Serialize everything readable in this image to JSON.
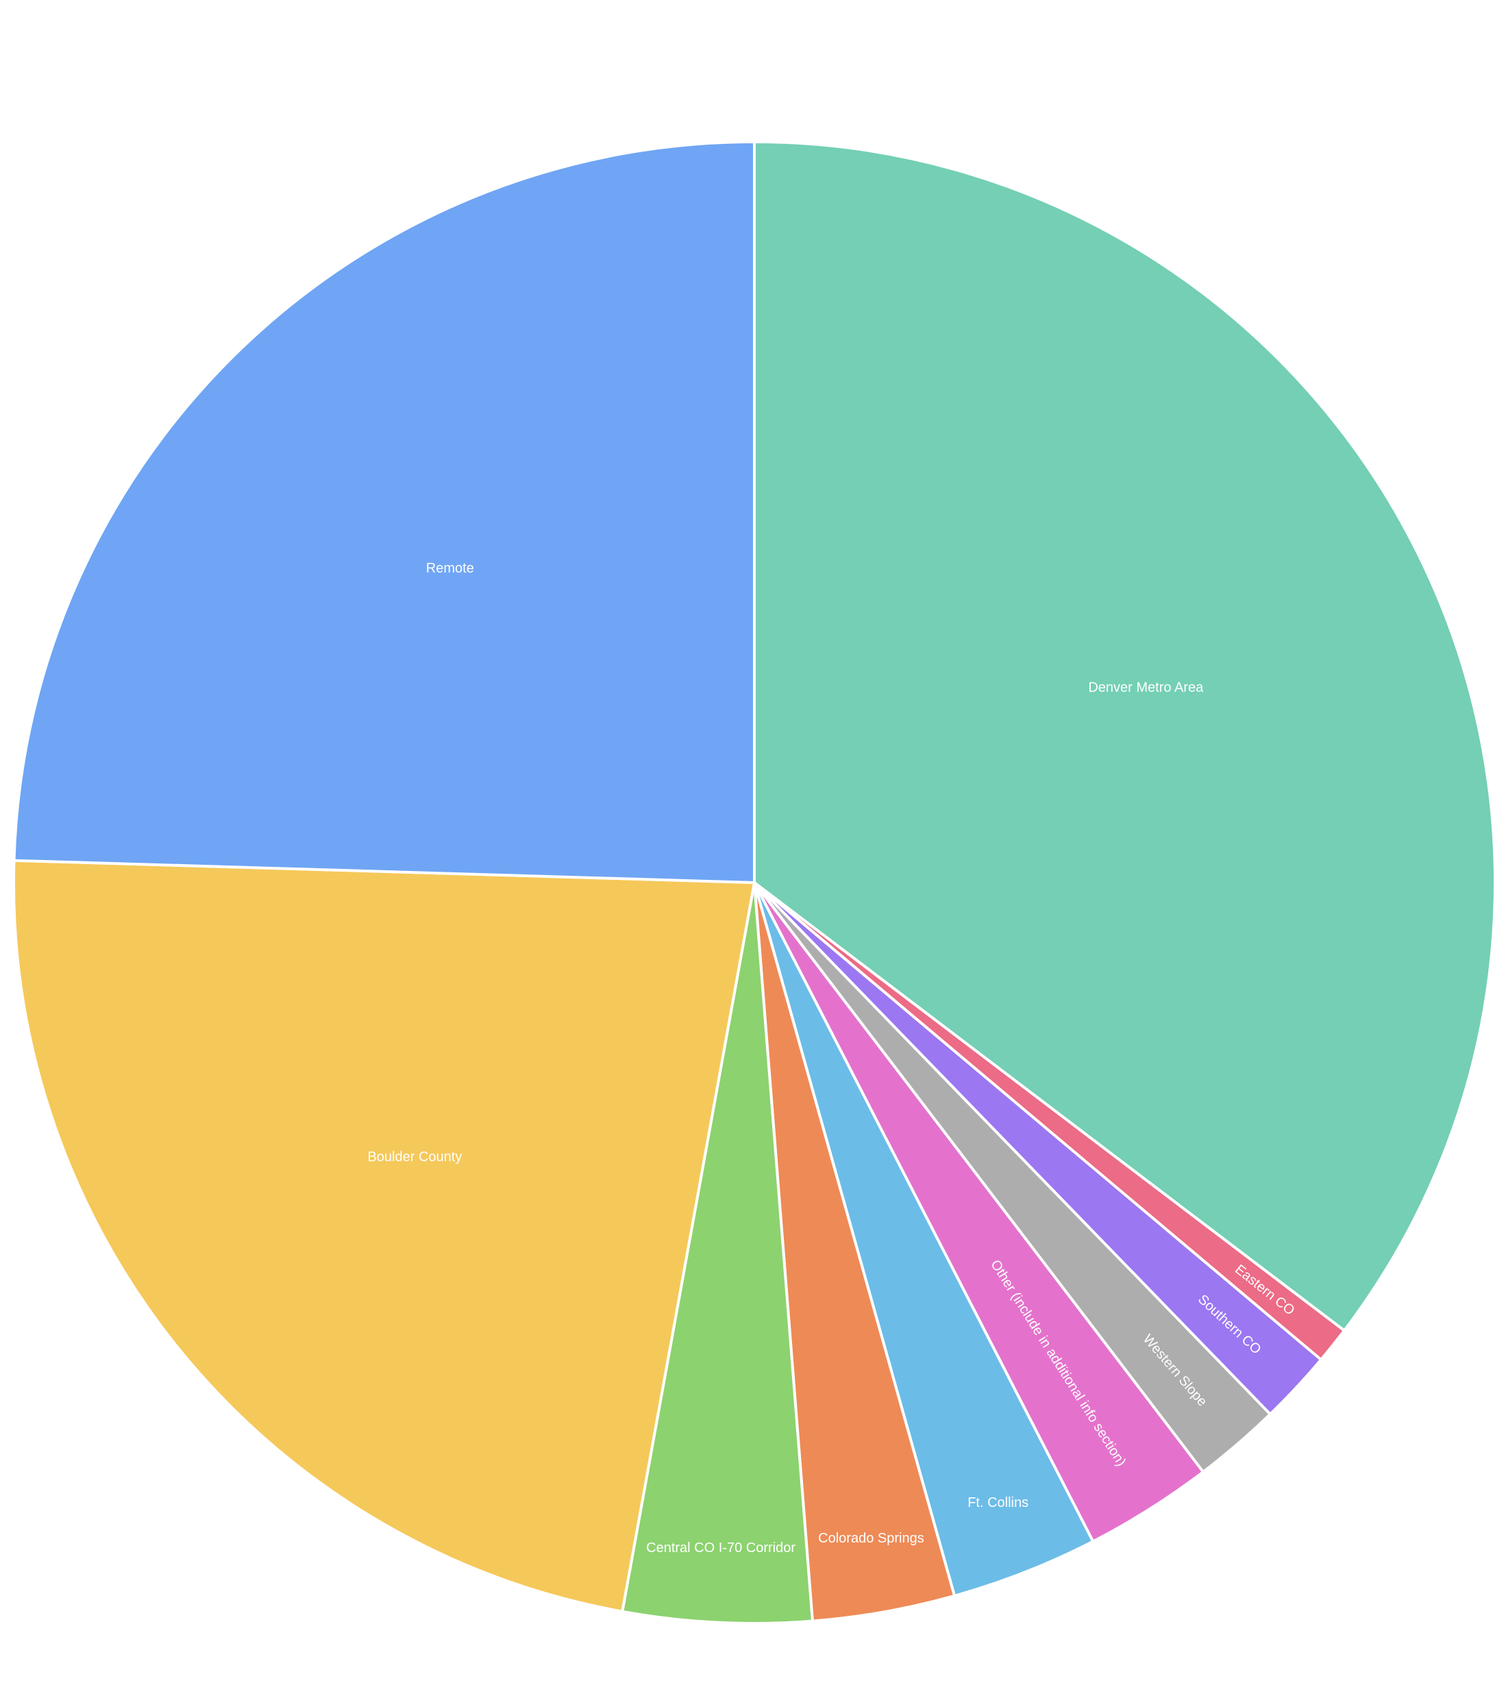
{
  "chart_data": {
    "type": "pie",
    "categories": [
      "Denver Metro Area",
      "Eastern CO",
      "Southern CO",
      "Western Slope",
      "Other (include in additional info section)",
      "Ft. Collins",
      "Colorado Springs",
      "Central CO I-70 Corridor",
      "Boulder County",
      "Remote"
    ],
    "values": [
      35.3,
      0.8,
      1.6,
      1.9,
      2.8,
      3.2,
      3.1,
      4.1,
      22.6,
      24.5
    ],
    "colors": [
      "#74cfb4",
      "#ec6b86",
      "#9b77f2",
      "#adadad",
      "#e472cc",
      "#6cbce8",
      "#ee8a56",
      "#8cd26f",
      "#f5c85a",
      "#6fa5f4"
    ]
  }
}
